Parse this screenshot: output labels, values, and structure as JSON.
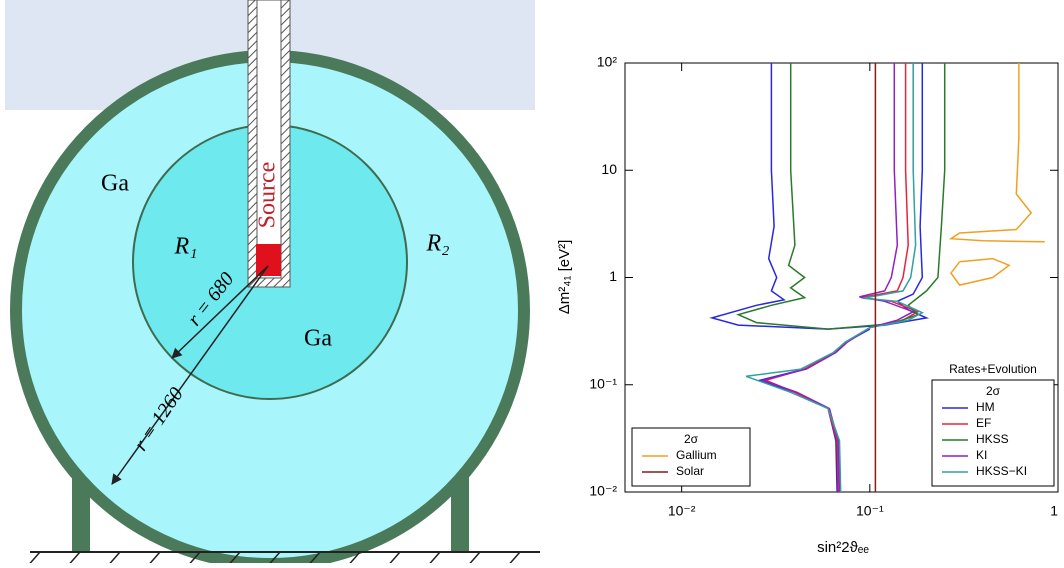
{
  "diagram": {
    "labels": [
      "Ga",
      "R₁",
      "Source",
      "Ga",
      "R₂",
      "r = 680",
      "r = 1260"
    ]
  },
  "chart_data": {
    "type": "line",
    "xlabel": "sin²2ϑₑₑ",
    "ylabel": "Δm²₄₁   [eV²]",
    "xlog": true,
    "ylog": true,
    "xlim": [
      0.005,
      1
    ],
    "ylim": [
      0.01,
      100
    ],
    "xticks": [
      {
        "value": 0.01,
        "label": "10⁻²"
      },
      {
        "value": 0.1,
        "label": "10⁻¹"
      },
      1
    ],
    "yticks": [
      {
        "value": 0.01,
        "label": "10⁻²"
      },
      {
        "value": 0.1,
        "label": "10⁻¹"
      },
      1,
      10,
      {
        "value": 100,
        "label": "10²"
      }
    ],
    "legend_titles": {
      "lower right": [
        "Rates+Evolution",
        "2σ"
      ],
      "lower left": [
        "2σ"
      ]
    },
    "series": [
      {
        "name": "HM",
        "color": "#2828e0",
        "legend": "lower right",
        "x": [
          0.03,
          0.03,
          0.031,
          0.029,
          0.032,
          0.03,
          0.035,
          0.025,
          0.0145,
          0.02,
          0.06,
          0.12,
          0.2,
          0.16,
          0.14,
          0.17,
          0.19,
          0.185,
          0.19,
          0.19,
          null,
          0.1,
          0.075,
          0.065,
          0.045,
          0.026,
          0.04,
          0.06,
          0.066,
          0.067
        ],
        "y": [
          100,
          10,
          3,
          1.5,
          1.0,
          0.75,
          0.62,
          0.55,
          0.42,
          0.36,
          0.33,
          0.36,
          0.42,
          0.5,
          0.6,
          0.7,
          1,
          3,
          10,
          100,
          null,
          0.33,
          0.25,
          0.2,
          0.14,
          0.11,
          0.085,
          0.06,
          0.03,
          0.01
        ]
      },
      {
        "name": "EF",
        "color": "#e8243c",
        "legend": "lower right",
        "x": [
          0.155,
          0.155,
          0.16,
          0.15,
          0.14,
          0.09,
          0.13,
          0.18,
          0.15,
          0.1,
          0.075,
          0.065,
          0.045,
          0.028,
          0.04,
          0.06,
          0.067,
          0.068
        ],
        "y": [
          100,
          10,
          2,
          1,
          0.75,
          0.65,
          0.6,
          0.48,
          0.4,
          0.34,
          0.25,
          0.2,
          0.14,
          0.11,
          0.085,
          0.06,
          0.03,
          0.01
        ]
      },
      {
        "name": "HKSS",
        "color": "#2a7a2a",
        "legend": "lower right",
        "x": [
          0.038,
          0.038,
          0.04,
          0.037,
          0.045,
          0.038,
          0.045,
          0.03,
          0.02,
          0.025,
          0.06,
          0.13,
          0.18,
          0.16,
          0.2,
          0.23,
          0.24,
          0.25,
          0.25
        ],
        "y": [
          100,
          10,
          2,
          1.3,
          1,
          0.8,
          0.65,
          0.55,
          0.45,
          0.38,
          0.33,
          0.37,
          0.45,
          0.55,
          0.75,
          1,
          3,
          10,
          100
        ]
      },
      {
        "name": "KI",
        "color": "#9020c0",
        "legend": "lower right",
        "x": [
          0.135,
          0.135,
          0.14,
          0.13,
          0.12,
          0.088,
          0.12,
          0.17,
          0.14,
          0.1,
          0.076,
          0.066,
          0.046,
          0.027,
          0.041,
          0.061,
          0.068,
          0.069
        ],
        "y": [
          100,
          10,
          2,
          1,
          0.75,
          0.66,
          0.6,
          0.48,
          0.4,
          0.34,
          0.25,
          0.2,
          0.14,
          0.11,
          0.085,
          0.06,
          0.03,
          0.01
        ]
      },
      {
        "name": "HKSS−KI",
        "color": "#30a0a0",
        "legend": "lower right",
        "x": [
          0.17,
          0.17,
          0.175,
          0.165,
          0.15,
          0.092,
          0.14,
          0.19,
          0.16,
          0.1,
          0.074,
          0.064,
          0.043,
          0.022,
          0.038,
          0.06,
          0.069,
          0.07
        ],
        "y": [
          100,
          10,
          2,
          1,
          0.75,
          0.64,
          0.6,
          0.47,
          0.4,
          0.34,
          0.25,
          0.2,
          0.14,
          0.12,
          0.085,
          0.06,
          0.03,
          0.01
        ]
      },
      {
        "name": "Gallium",
        "color": "#f0a020",
        "legend": "lower left",
        "x": [
          0.62,
          0.62,
          0.6,
          0.72,
          0.6,
          0.3,
          0.27,
          0.4,
          0.85,
          null,
          0.3,
          0.45,
          0.55,
          0.45,
          0.3,
          0.27,
          0.3
        ],
        "y": [
          100,
          20,
          6,
          4,
          2.8,
          2.6,
          2.3,
          2.2,
          2.15,
          null,
          1.4,
          1.5,
          1.3,
          1.0,
          0.85,
          1.1,
          1.4
        ]
      },
      {
        "name": "Solar",
        "color": "#8b1a1a",
        "legend": "lower left",
        "x": [
          0.107,
          0.107
        ],
        "y": [
          0.01,
          100
        ]
      }
    ]
  }
}
